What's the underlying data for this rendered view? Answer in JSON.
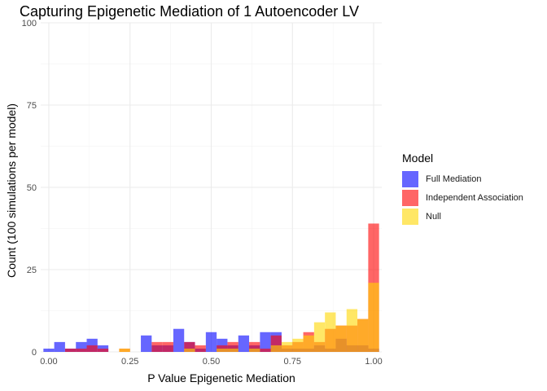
{
  "chart_data": {
    "type": "bar",
    "subtype": "overlapping-histogram",
    "title": "Capturing Epigenetic Mediation of 1 Autoencoder LV",
    "xlabel": "P Value Epigenetic Mediation",
    "ylabel": "Count (100 simulations per model)",
    "xlim": [
      -0.025,
      1.025
    ],
    "ylim": [
      0,
      100
    ],
    "x_ticks": [
      0.0,
      0.25,
      0.5,
      0.75,
      1.0
    ],
    "x_tick_labels": [
      "0.00",
      "0.25",
      "0.50",
      "0.75",
      "1.00"
    ],
    "y_ticks": [
      0,
      25,
      50,
      75,
      100
    ],
    "y_tick_labels": [
      "0",
      "25",
      "50",
      "75",
      "100"
    ],
    "grid": true,
    "bin_centers": [
      0.0,
      0.0333,
      0.0667,
      0.1,
      0.1333,
      0.1667,
      0.2,
      0.2333,
      0.2667,
      0.3,
      0.3333,
      0.3667,
      0.4,
      0.4333,
      0.4667,
      0.5,
      0.5333,
      0.5667,
      0.6,
      0.6333,
      0.6667,
      0.7,
      0.7333,
      0.7667,
      0.8,
      0.8333,
      0.8667,
      0.9,
      0.9333,
      0.9667,
      1.0
    ],
    "legend": {
      "title": "Model",
      "position": "right"
    },
    "series": [
      {
        "name": "Full Mediation",
        "color": "#0000FF",
        "values": [
          1,
          3,
          1,
          3,
          4,
          2,
          0,
          0,
          0,
          5,
          2,
          2,
          7,
          3,
          1,
          6,
          4,
          2,
          5,
          2,
          6,
          6,
          1,
          1,
          1,
          2,
          1,
          4,
          2,
          2,
          1
        ]
      },
      {
        "name": "Independent Association",
        "color": "#FF0000",
        "values": [
          0,
          0,
          1,
          1,
          2,
          1,
          0,
          1,
          0,
          0,
          3,
          3,
          0,
          3,
          2,
          0,
          2,
          3,
          0,
          3,
          1,
          5,
          2,
          3,
          6,
          3,
          7,
          8,
          8,
          10,
          39
        ]
      },
      {
        "name": "Null",
        "color": "#FFD700",
        "values": [
          0,
          0,
          0,
          0,
          0,
          0,
          0,
          1,
          0,
          0,
          0,
          0,
          0,
          1,
          0,
          0,
          1,
          1,
          0,
          1,
          0,
          2,
          3,
          4,
          5,
          9,
          12,
          8,
          13,
          10,
          21
        ]
      }
    ]
  }
}
